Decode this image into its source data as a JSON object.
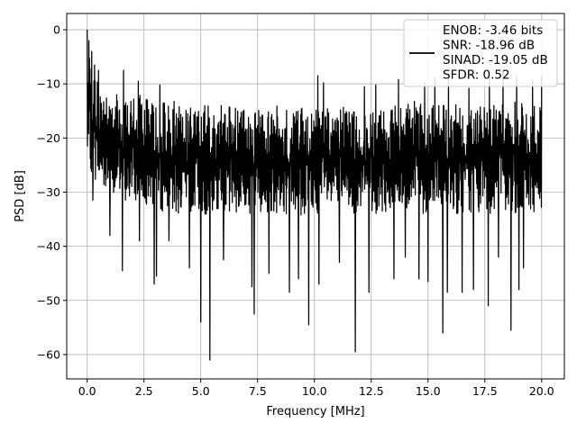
{
  "chart_data": {
    "type": "line",
    "xlabel": "Frequency [MHz]",
    "ylabel": "PSD [dB]",
    "xlim": [
      -0.9,
      21.0
    ],
    "ylim": [
      -64.5,
      3.0
    ],
    "grid": true,
    "x_ticks": [
      0.0,
      2.5,
      5.0,
      7.5,
      10.0,
      12.5,
      15.0,
      17.5,
      20.0
    ],
    "x_tick_labels": [
      "0.0",
      "2.5",
      "5.0",
      "7.5",
      "10.0",
      "12.5",
      "15.0",
      "17.5",
      "20.0"
    ],
    "y_ticks": [
      0,
      -10,
      -20,
      -30,
      -40,
      -50,
      -60
    ],
    "y_tick_labels": [
      "0",
      "−10",
      "−20",
      "−30",
      "−40",
      "−50",
      "−60"
    ],
    "series": [
      {
        "color": "#000000",
        "x_range": [
          0.0,
          20.0
        ],
        "x_step": 0.5,
        "band_upper": [
          -3,
          -10,
          -12,
          -12,
          -12,
          -12,
          -13,
          -13,
          -13,
          -14,
          -14,
          -14,
          -14,
          -14,
          -15,
          -15,
          -14,
          -14,
          -14,
          -14,
          -15,
          -14,
          -14,
          -14,
          -15,
          -15,
          -15,
          -14,
          -14,
          -13,
          -14,
          -14,
          -13,
          -14,
          -14,
          -14,
          -13,
          -14,
          -13,
          -14,
          -14
        ],
        "band_lower": [
          -25,
          -29,
          -30,
          -32,
          -32,
          -32,
          -33,
          -34,
          -34,
          -34,
          -34,
          -35,
          -34,
          -34,
          -34,
          -34,
          -34,
          -34,
          -34,
          -35,
          -34,
          -34,
          -34,
          -34,
          -34,
          -34,
          -34,
          -34,
          -34,
          -34,
          -34,
          -34,
          -34,
          -34,
          -34,
          -34,
          -34,
          -34,
          -34,
          -34,
          -34
        ],
        "peaks": [
          [
            0.0,
            0.0
          ],
          [
            0.08,
            -2.0
          ],
          [
            0.2,
            -4.0
          ],
          [
            0.33,
            -6.5
          ],
          [
            0.5,
            -7.5
          ],
          [
            1.6,
            -7.5
          ],
          [
            2.25,
            -9.5
          ],
          [
            3.2,
            -10.2
          ],
          [
            10.15,
            -8.5
          ],
          [
            10.4,
            -9.8
          ],
          [
            12.2,
            -10.5
          ],
          [
            12.7,
            -10.2
          ],
          [
            13.7,
            -9.2
          ],
          [
            14.85,
            -9.8
          ],
          [
            15.3,
            -9.0
          ],
          [
            15.9,
            -8.8
          ],
          [
            16.8,
            -10.8
          ],
          [
            17.7,
            -8.6
          ],
          [
            18.3,
            -7.7
          ],
          [
            18.9,
            -8.6
          ],
          [
            19.2,
            -9.5
          ],
          [
            19.6,
            -9.3
          ],
          [
            20.0,
            -8.5
          ]
        ],
        "dips": [
          [
            0.25,
            -31.5
          ],
          [
            1.0,
            -38.0
          ],
          [
            1.55,
            -44.5
          ],
          [
            2.3,
            -39.0
          ],
          [
            2.95,
            -47.0
          ],
          [
            3.05,
            -45.5
          ],
          [
            3.6,
            -39.0
          ],
          [
            4.5,
            -44.0
          ],
          [
            5.0,
            -54.0
          ],
          [
            5.4,
            -61.0
          ],
          [
            6.0,
            -42.5
          ],
          [
            7.25,
            -47.5
          ],
          [
            7.35,
            -52.5
          ],
          [
            8.0,
            -45.0
          ],
          [
            8.9,
            -48.5
          ],
          [
            9.3,
            -46.0
          ],
          [
            9.75,
            -54.5
          ],
          [
            10.2,
            -47.0
          ],
          [
            11.1,
            -43.0
          ],
          [
            11.8,
            -59.5
          ],
          [
            12.4,
            -48.5
          ],
          [
            13.5,
            -46.0
          ],
          [
            14.0,
            -42.0
          ],
          [
            14.6,
            -46.0
          ],
          [
            15.0,
            -46.5
          ],
          [
            15.65,
            -56.0
          ],
          [
            15.85,
            -48.5
          ],
          [
            16.5,
            -48.5
          ],
          [
            17.0,
            -48.0
          ],
          [
            17.65,
            -51.0
          ],
          [
            18.1,
            -42.0
          ],
          [
            18.65,
            -55.5
          ],
          [
            19.0,
            -48.0
          ],
          [
            19.2,
            -44.0
          ]
        ]
      }
    ],
    "legend": {
      "position": "top-right",
      "entries": [
        "ENOB: -3.46 bits",
        "SNR: -18.96 dB",
        "SINAD: -19.05 dB",
        "SFDR: 0.52"
      ]
    }
  }
}
